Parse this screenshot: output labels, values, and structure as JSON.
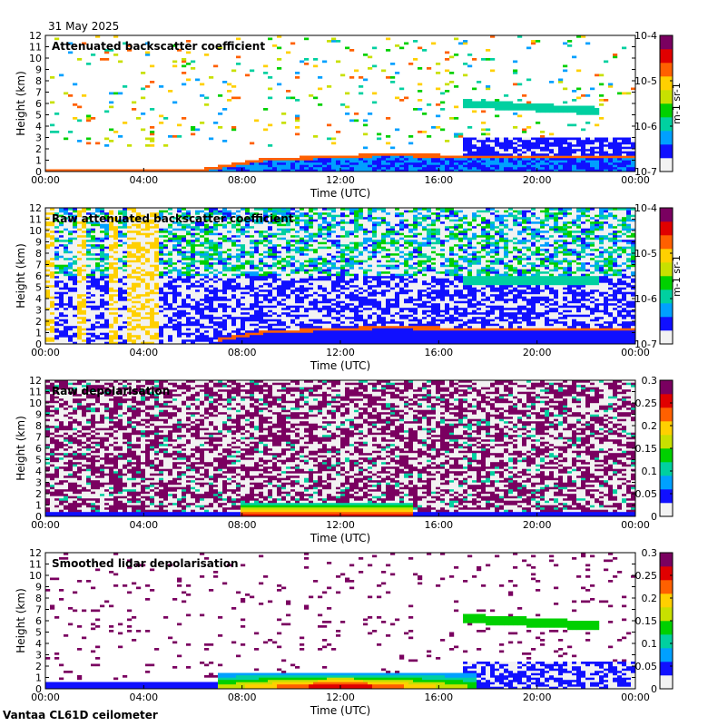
{
  "header": {
    "date": "31 May 2025"
  },
  "footer": {
    "instrument": "Vantaa CL61D ceilometer"
  },
  "colors": {
    "scale": [
      "#f2f2f2",
      "#1010ff",
      "#00a0ff",
      "#00d0a0",
      "#00d000",
      "#c8e000",
      "#ffd000",
      "#ff6000",
      "#e00000",
      "#7a0060"
    ]
  },
  "chart_data": [
    {
      "type": "heatmap",
      "title": "Attenuated backscatter coefficient",
      "xlabel": "Time (UTC)",
      "ylabel": "Height (km)",
      "x_ticks": [
        "00:00",
        "04:00",
        "08:00",
        "12:00",
        "16:00",
        "20:00",
        "00:00"
      ],
      "y_ticks": [
        "0",
        "1",
        "2",
        "3",
        "4",
        "5",
        "6",
        "7",
        "8",
        "9",
        "10",
        "11",
        "12"
      ],
      "ylim": [
        0,
        12
      ],
      "xlim_hours": [
        0,
        24
      ],
      "colorbar": {
        "scale": "log",
        "ticks": [
          "10-7",
          "10-6",
          "10-5",
          "10-4"
        ],
        "label": "m-1 sr-1"
      },
      "features": {
        "boundary_layer_km": [
          0.2,
          0.2,
          0.4,
          1.3,
          1.5,
          1.6,
          1.5
        ],
        "elevated_layer": {
          "start_h": 17,
          "end_h": 22.5,
          "height_km": 5.5
        }
      }
    },
    {
      "type": "heatmap",
      "title": "Raw attenuated backscatter coefficient",
      "xlabel": "Time (UTC)",
      "ylabel": "Height (km)",
      "x_ticks": [
        "00:00",
        "04:00",
        "08:00",
        "12:00",
        "16:00",
        "20:00",
        "00:00"
      ],
      "y_ticks": [
        "0",
        "1",
        "2",
        "3",
        "4",
        "5",
        "6",
        "7",
        "8",
        "9",
        "10",
        "11",
        "12"
      ],
      "ylim": [
        0,
        12
      ],
      "xlim_hours": [
        0,
        24
      ],
      "colorbar": {
        "scale": "log",
        "ticks": [
          "10-7",
          "10-6",
          "10-5",
          "10-4"
        ],
        "label": "m-1 sr-1"
      }
    },
    {
      "type": "heatmap",
      "title": "Raw depolarisation",
      "xlabel": "Time (UTC)",
      "ylabel": "Height (km)",
      "x_ticks": [
        "00:00",
        "04:00",
        "08:00",
        "12:00",
        "16:00",
        "20:00",
        "00:00"
      ],
      "y_ticks": [
        "0",
        "1",
        "2",
        "3",
        "4",
        "5",
        "6",
        "7",
        "8",
        "9",
        "10",
        "11",
        "12"
      ],
      "ylim": [
        0,
        12
      ],
      "xlim_hours": [
        0,
        24
      ],
      "colorbar": {
        "scale": "linear",
        "ticks": [
          "0",
          "0.05",
          "0.1",
          "0.15",
          "0.2",
          "0.25",
          "0.3"
        ],
        "range": [
          0,
          0.3
        ]
      }
    },
    {
      "type": "heatmap",
      "title": "Smoothed lidar depolarisation",
      "xlabel": "Time (UTC)",
      "ylabel": "Height (km)",
      "x_ticks": [
        "00:00",
        "04:00",
        "08:00",
        "12:00",
        "16:00",
        "20:00",
        "00:00"
      ],
      "y_ticks": [
        "0",
        "1",
        "2",
        "3",
        "4",
        "5",
        "6",
        "7",
        "8",
        "9",
        "10",
        "11",
        "12"
      ],
      "ylim": [
        0,
        12
      ],
      "xlim_hours": [
        0,
        24
      ],
      "colorbar": {
        "scale": "linear",
        "ticks": [
          "0",
          "0.05",
          "0.1",
          "0.15",
          "0.2",
          "0.25",
          "0.3"
        ],
        "range": [
          0,
          0.3
        ]
      }
    }
  ]
}
